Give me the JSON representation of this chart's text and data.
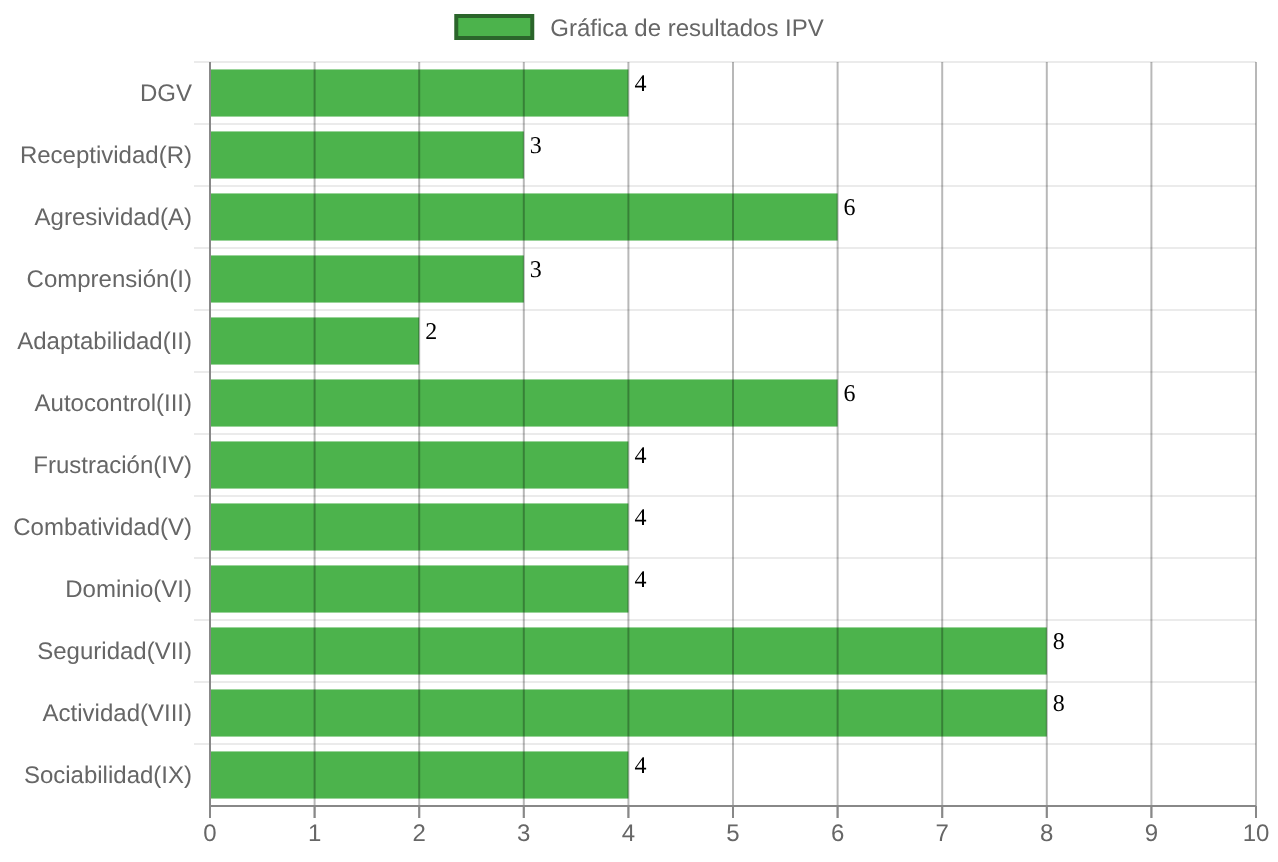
{
  "chart_data": {
    "type": "bar",
    "orientation": "horizontal",
    "categories": [
      "DGV",
      "Receptividad(R)",
      "Agresividad(A)",
      "Comprensión(I)",
      "Adaptabilidad(II)",
      "Autocontrol(III)",
      "Frustración(IV)",
      "Combatividad(V)",
      "Dominio(VI)",
      "Seguridad(VII)",
      "Actividad(VIII)",
      "Sociabilidad(IX)"
    ],
    "series": [
      {
        "name": "Gráfica de resultados IPV",
        "color": "#4cb34c",
        "values": [
          4,
          3,
          6,
          3,
          2,
          6,
          4,
          4,
          4,
          8,
          8,
          4
        ]
      }
    ],
    "xlim": [
      0,
      10
    ],
    "xticks": [
      0,
      1,
      2,
      3,
      4,
      5,
      6,
      7,
      8,
      9,
      10
    ],
    "grid": true,
    "legend": "top",
    "data_labels": true
  }
}
